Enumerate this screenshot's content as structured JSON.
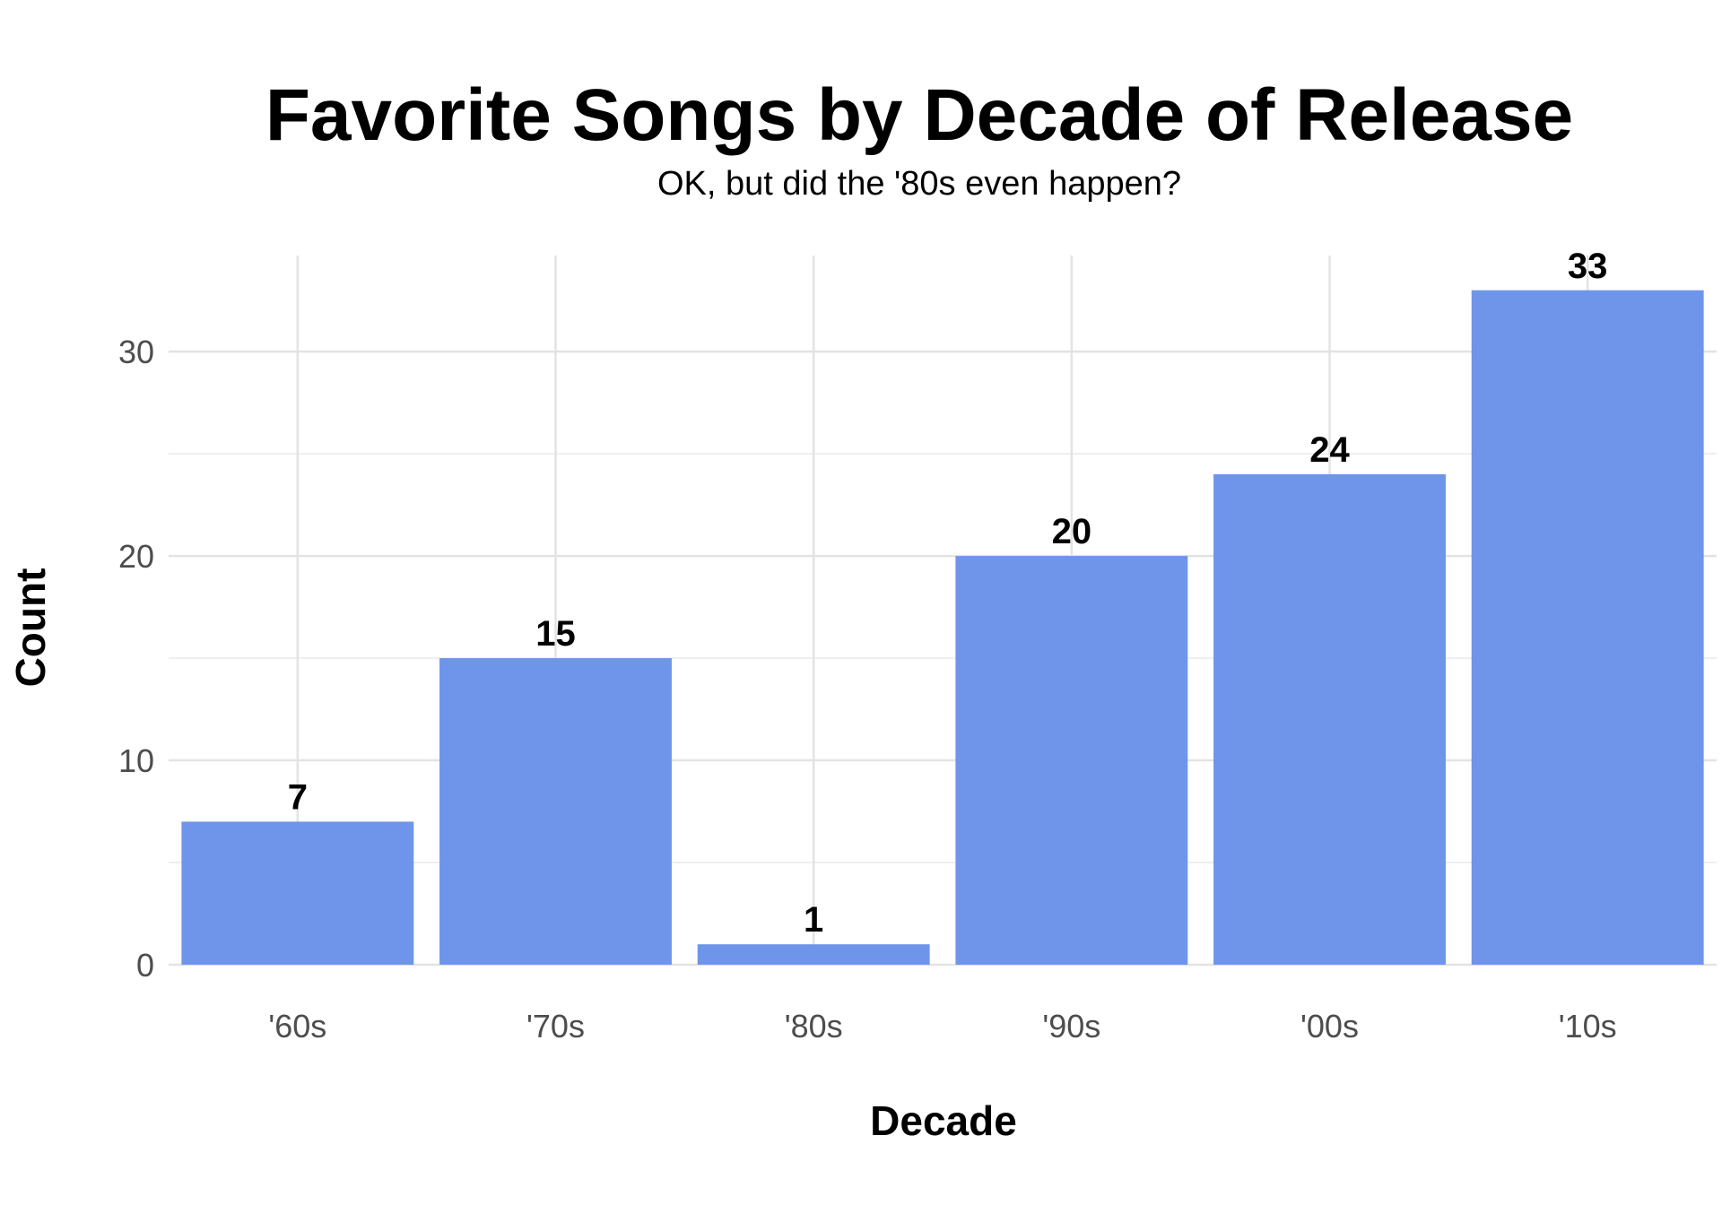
{
  "chart_data": {
    "type": "bar",
    "title": "Favorite Songs by Decade of Release",
    "subtitle": "OK, but did the '80s even happen?",
    "xlabel": "Decade",
    "ylabel": "Count",
    "categories": [
      "'60s",
      "'70s",
      "'80s",
      "'90s",
      "'00s",
      "'10s"
    ],
    "values": [
      7,
      15,
      1,
      20,
      24,
      33
    ],
    "ylim": [
      0,
      34.7
    ],
    "yticks": [
      0,
      10,
      20,
      30
    ],
    "grid": true,
    "bar_color": "#6f95ea",
    "data_labels": true
  }
}
